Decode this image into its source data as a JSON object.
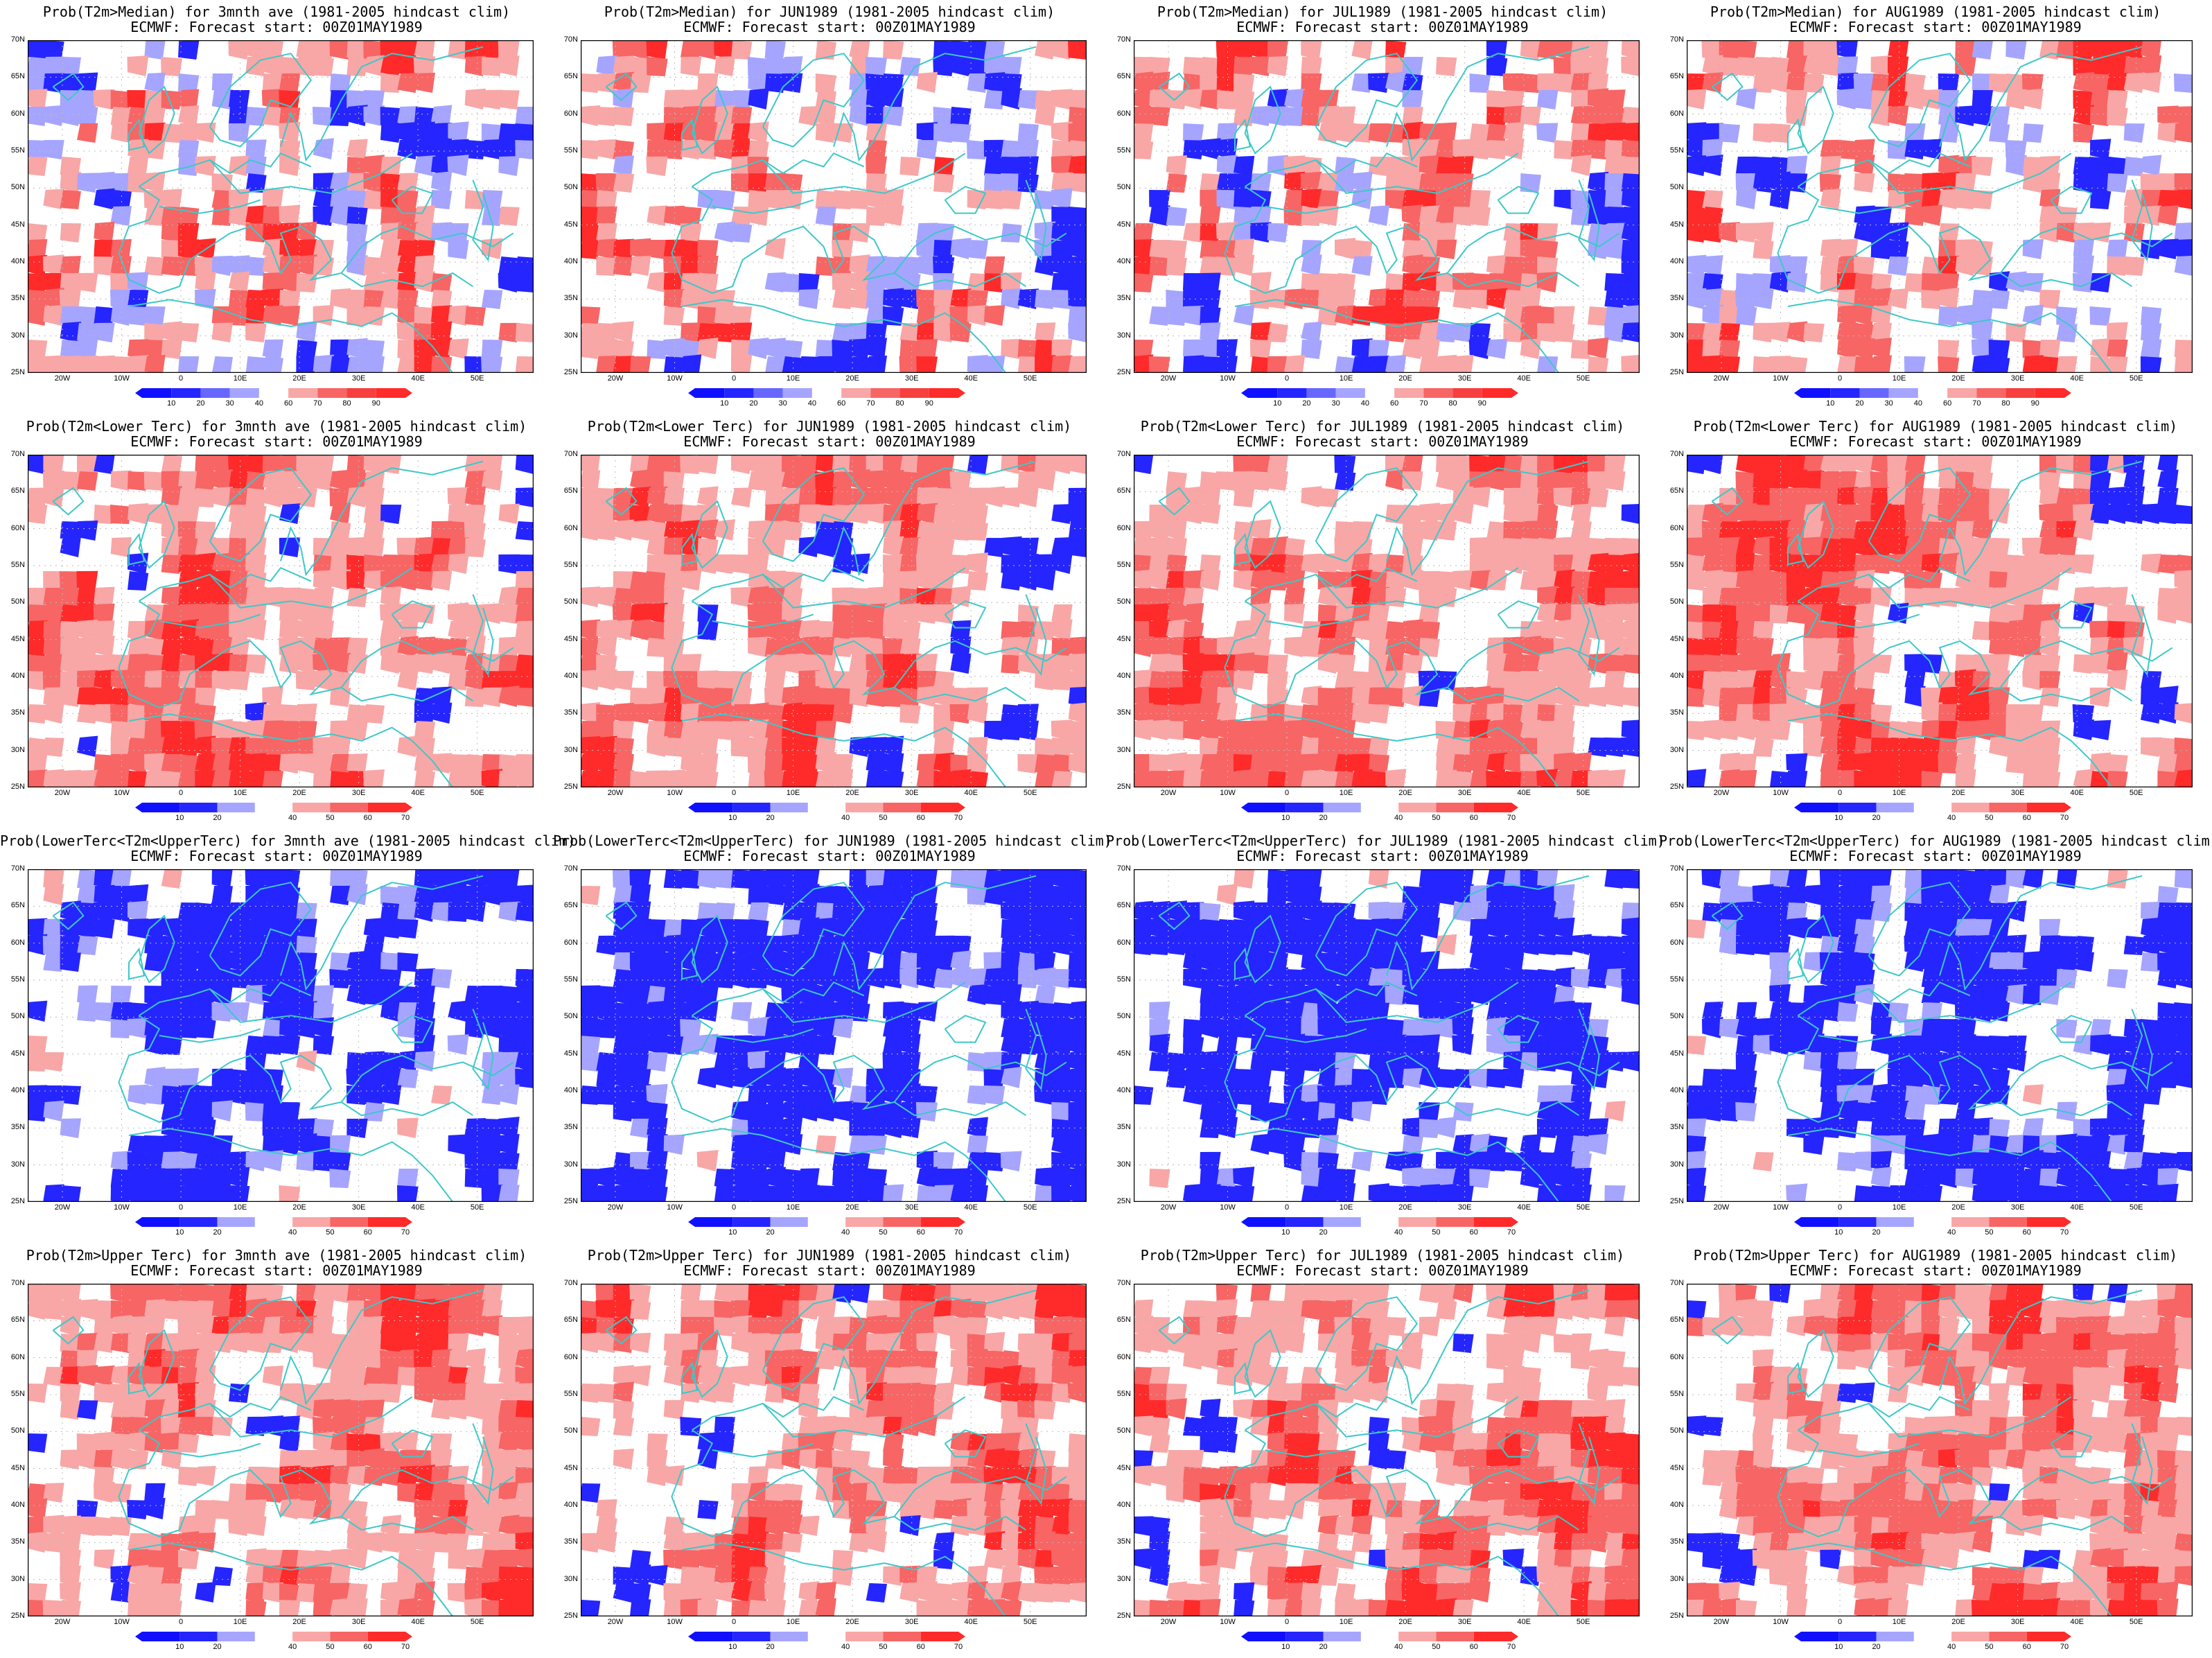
{
  "colors": {
    "deep_blue": "#2525ff",
    "light_blue": "#a5a5ff",
    "light_red": "#f9a6a6",
    "mid_red": "#f76565",
    "deep_red": "#ff2a2a",
    "coast": "#3dc8c8"
  },
  "lat_labels": [
    "70N",
    "65N",
    "60N",
    "55N",
    "50N",
    "45N",
    "40N",
    "35N",
    "30N",
    "25N"
  ],
  "lon_labels": [
    "20W",
    "10W",
    "0",
    "10E",
    "20E",
    "30E",
    "40E",
    "50E"
  ],
  "colorbar_median": [
    "10",
    "20",
    "30",
    "40",
    "60",
    "70",
    "80",
    "90"
  ],
  "colorbar_tercile": [
    "10",
    "20",
    "40",
    "50",
    "60",
    "70"
  ],
  "rows": [
    {
      "type": "median",
      "panels": [
        {
          "title": "Prob(T2m>Median) for 3mnth ave (1981-2005 hindcast clim)",
          "subtitle": "ECMWF: Forecast start: 00Z01MAY1989"
        },
        {
          "title": "Prob(T2m>Median) for JUN1989 (1981-2005 hindcast clim)",
          "subtitle": "ECMWF: Forecast start: 00Z01MAY1989"
        },
        {
          "title": "Prob(T2m>Median) for JUL1989 (1981-2005 hindcast clim)",
          "subtitle": "ECMWF: Forecast start: 00Z01MAY1989"
        },
        {
          "title": "Prob(T2m>Median) for AUG1989 (1981-2005 hindcast clim)",
          "subtitle": "ECMWF: Forecast start: 00Z01MAY1989"
        }
      ]
    },
    {
      "type": "lower",
      "panels": [
        {
          "title": "Prob(T2m<Lower Terc) for 3mnth ave (1981-2005 hindcast clim)",
          "subtitle": "ECMWF: Forecast start: 00Z01MAY1989"
        },
        {
          "title": "Prob(T2m<Lower Terc) for JUN1989 (1981-2005 hindcast clim)",
          "subtitle": "ECMWF: Forecast start: 00Z01MAY1989"
        },
        {
          "title": "Prob(T2m<Lower Terc) for JUL1989 (1981-2005 hindcast clim)",
          "subtitle": "ECMWF: Forecast start: 00Z01MAY1989"
        },
        {
          "title": "Prob(T2m<Lower Terc) for AUG1989 (1981-2005 hindcast clim)",
          "subtitle": "ECMWF: Forecast start: 00Z01MAY1989"
        }
      ]
    },
    {
      "type": "middle",
      "panels": [
        {
          "title": "Prob(LowerTerc<T2m<UpperTerc) for 3mnth ave (1981-2005 hindcast clim)",
          "subtitle": "ECMWF: Forecast start: 00Z01MAY1989"
        },
        {
          "title": "Prob(LowerTerc<T2m<UpperTerc) for JUN1989 (1981-2005 hindcast clim)",
          "subtitle": "ECMWF: Forecast start: 00Z01MAY1989"
        },
        {
          "title": "Prob(LowerTerc<T2m<UpperTerc) for JUL1989 (1981-2005 hindcast clim)",
          "subtitle": "ECMWF: Forecast start: 00Z01MAY1989"
        },
        {
          "title": "Prob(LowerTerc<T2m<UpperTerc) for AUG1989 (1981-2005 hindcast clim)",
          "subtitle": "ECMWF: Forecast start: 00Z01MAY1989"
        }
      ]
    },
    {
      "type": "upper",
      "panels": [
        {
          "title": "Prob(T2m>Upper Terc) for 3mnth ave (1981-2005 hindcast clim)",
          "subtitle": "ECMWF: Forecast start: 00Z01MAY1989"
        },
        {
          "title": "Prob(T2m>Upper Terc) for JUN1989 (1981-2005 hindcast clim)",
          "subtitle": "ECMWF: Forecast start: 00Z01MAY1989"
        },
        {
          "title": "Prob(T2m>Upper Terc) for JUL1989 (1981-2005 hindcast clim)",
          "subtitle": "ECMWF: Forecast start: 00Z01MAY1989"
        },
        {
          "title": "Prob(T2m>Upper Terc) for AUG1989 (1981-2005 hindcast clim)",
          "subtitle": "ECMWF: Forecast start: 00Z01MAY1989"
        }
      ]
    }
  ]
}
